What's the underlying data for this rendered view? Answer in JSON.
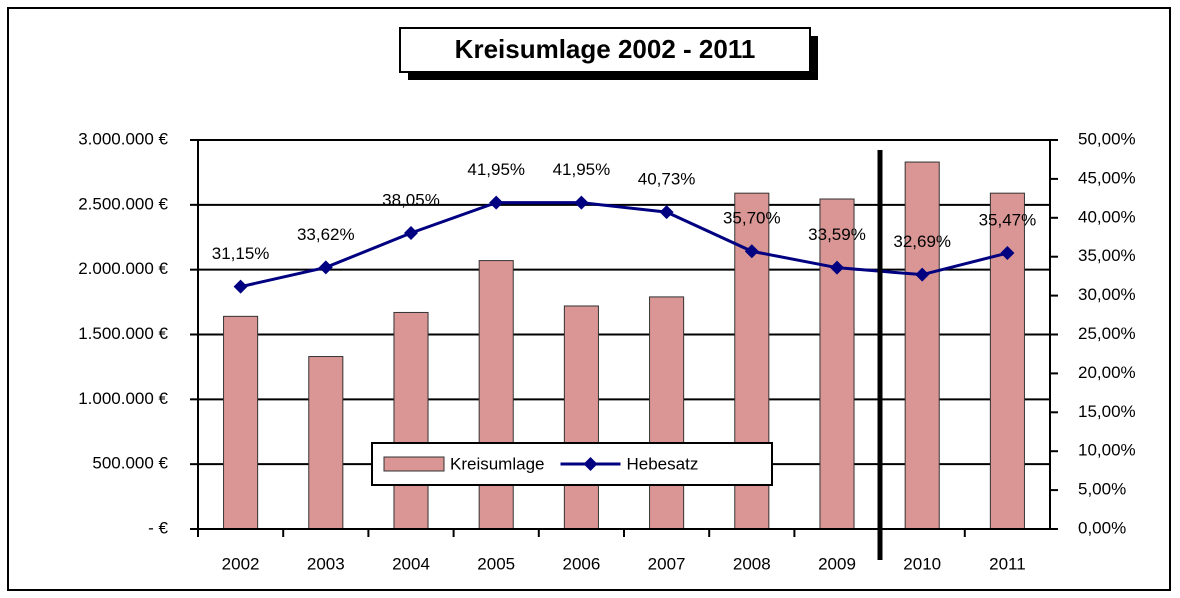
{
  "chart_data": {
    "type": "bar-line",
    "title": "Kreisumlage 2002 - 2011",
    "categories": [
      "2002",
      "2003",
      "2004",
      "2005",
      "2006",
      "2007",
      "2008",
      "2009",
      "2010",
      "2011"
    ],
    "series": [
      {
        "name": "Kreisumlage",
        "type": "bar",
        "color": "#d99694",
        "values": [
          1640000,
          1330000,
          1670000,
          2070000,
          1720000,
          1790000,
          2590000,
          2545000,
          2830000,
          2590000
        ]
      },
      {
        "name": "Hebesatz",
        "type": "line",
        "axis": "y2",
        "color": "#000080",
        "values": [
          31.15,
          33.62,
          38.05,
          41.95,
          41.95,
          40.73,
          35.7,
          33.59,
          32.69,
          35.47
        ],
        "value_labels": [
          "31,15%",
          "33,62%",
          "38,05%",
          "41,95%",
          "41,95%",
          "40,73%",
          "35,70%",
          "33,59%",
          "32,69%",
          "35,47%"
        ]
      }
    ],
    "ylim": [
      0,
      3000000
    ],
    "yticks": [
      {
        "value": 0,
        "label": "-   €"
      },
      {
        "value": 500000,
        "label": "500.000 €"
      },
      {
        "value": 1000000,
        "label": "1.000.000 €"
      },
      {
        "value": 1500000,
        "label": "1.500.000 €"
      },
      {
        "value": 2000000,
        "label": "2.000.000 €"
      },
      {
        "value": 2500000,
        "label": "2.500.000 €"
      },
      {
        "value": 3000000,
        "label": "3.000.000 €"
      }
    ],
    "y2lim": [
      0,
      50
    ],
    "y2ticks": [
      {
        "value": 0,
        "label": "0,00%"
      },
      {
        "value": 5,
        "label": "5,00%"
      },
      {
        "value": 10,
        "label": "10,00%"
      },
      {
        "value": 15,
        "label": "15,00%"
      },
      {
        "value": 20,
        "label": "20,00%"
      },
      {
        "value": 25,
        "label": "25,00%"
      },
      {
        "value": 30,
        "label": "30,00%"
      },
      {
        "value": 35,
        "label": "35,00%"
      },
      {
        "value": 40,
        "label": "40,00%"
      },
      {
        "value": 45,
        "label": "45,00%"
      },
      {
        "value": 50,
        "label": "50,00%"
      }
    ],
    "grid": true
  }
}
